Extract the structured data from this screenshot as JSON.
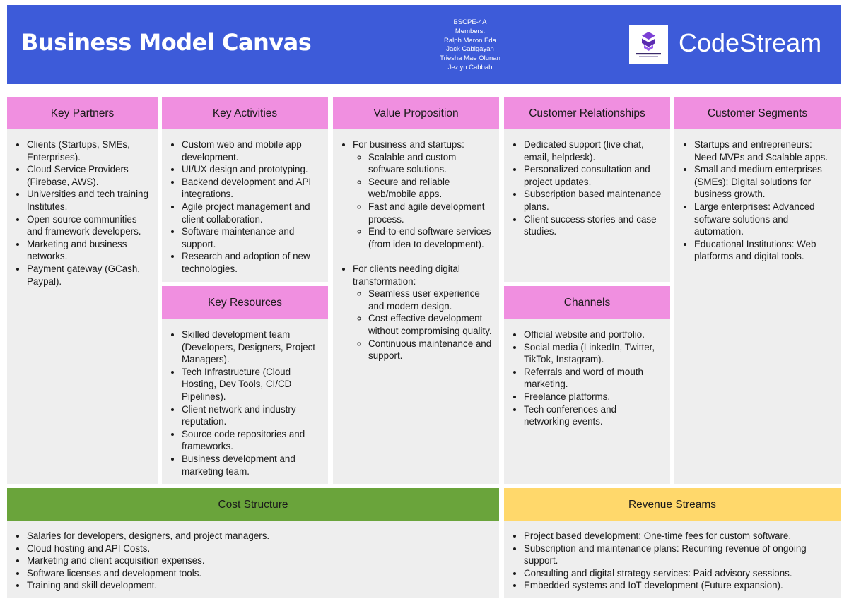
{
  "header": {
    "title": "Business Model Canvas",
    "members": [
      "BSCPE-4A",
      "Members:",
      "Ralph Maron Eda",
      "Jack Cabigayan",
      "Triesha Mae Olunan",
      "Jezlyn Cabbab"
    ],
    "logo_text": "CODESTREAM",
    "logo_icon": "codestream-logo-icon",
    "brand": "CodeStream"
  },
  "colors": {
    "header_bg": "#3d5bd9",
    "section_header": "#f08fe0",
    "cost_header": "#6aa43b",
    "revenue_header": "#ffd86b",
    "body_bg": "#eeeeee"
  },
  "sections": {
    "key_partners": {
      "title": "Key Partners",
      "items": [
        "Clients (Startups, SMEs, Enterprises).",
        "Cloud Service Providers (Firebase, AWS).",
        "Universities and tech training Institutes.",
        "Open source communities and framework developers.",
        "Marketing and business networks.",
        "Payment gateway (GCash, Paypal)."
      ]
    },
    "key_activities": {
      "title": "Key Activities",
      "items": [
        "Custom web and mobile app development.",
        "UI/UX design and prototyping.",
        "Backend development and API integrations.",
        "Agile project management and client collaboration.",
        "Software maintenance and support.",
        "Research and adoption of new technologies."
      ]
    },
    "key_resources": {
      "title": "Key Resources",
      "items": [
        "Skilled development team (Developers, Designers, Project Managers).",
        "Tech Infrastructure (Cloud Hosting, Dev Tools, CI/CD Pipelines).",
        "Client network and industry reputation.",
        "Source code repositories and frameworks.",
        "Business development and marketing team."
      ]
    },
    "value_proposition": {
      "title": "Value Proposition",
      "groups": [
        {
          "label": "For business and startups:",
          "items": [
            "Scalable and custom software solutions.",
            "Secure and reliable web/mobile apps.",
            "Fast and agile development process.",
            "End-to-end software services (from idea to development)."
          ]
        },
        {
          "label": "For clients needing digital transformation:",
          "items": [
            "Seamless user experience and modern design.",
            "Cost effective development without compromising quality.",
            "Continuous maintenance and support."
          ]
        }
      ]
    },
    "customer_relationships": {
      "title": "Customer Relationships",
      "items": [
        "Dedicated support (live chat, email, helpdesk).",
        "Personalized consultation and project updates.",
        "Subscription based maintenance plans.",
        "Client success stories and case studies."
      ]
    },
    "channels": {
      "title": "Channels",
      "items": [
        "Official website and portfolio.",
        "Social media (LinkedIn, Twitter, TikTok, Instagram).",
        "Referrals and word of mouth marketing.",
        "Freelance platforms.",
        "Tech conferences and networking events."
      ]
    },
    "customer_segments": {
      "title": "Customer Segments",
      "items": [
        "Startups and entrepreneurs: Need MVPs and Scalable apps.",
        "Small and medium enterprises (SMEs): Digital solutions for business growth.",
        "Large enterprises: Advanced software solutions and automation.",
        "Educational Institutions: Web platforms and digital tools."
      ]
    },
    "cost_structure": {
      "title": "Cost Structure",
      "items": [
        "Salaries for developers, designers, and project managers.",
        "Cloud hosting and API Costs.",
        "Marketing and client acquisition expenses.",
        "Software licenses and development tools.",
        "Training and skill development."
      ]
    },
    "revenue_streams": {
      "title": "Revenue Streams",
      "items": [
        "Project based development: One-time fees for custom software.",
        "Subscription and maintenance plans: Recurring revenue of ongoing support.",
        "Consulting and digital strategy services: Paid advisory sessions.",
        "Embedded systems and IoT development (Future expansion)."
      ]
    }
  }
}
